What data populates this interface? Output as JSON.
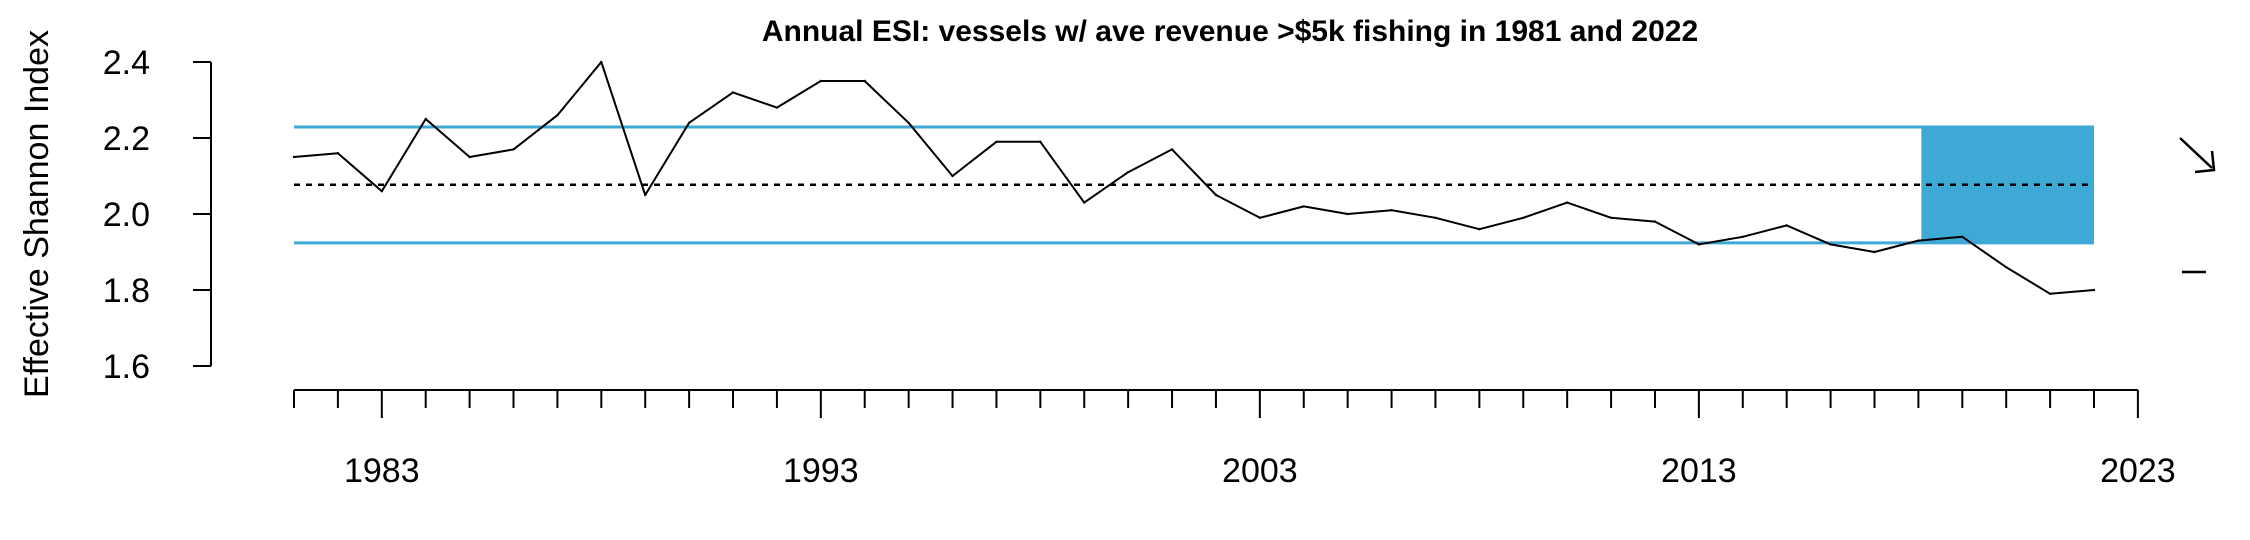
{
  "chart_data": {
    "type": "line",
    "title": "Annual ESI: vessels w/ ave revenue >$5k fishing in 1981 and 2022",
    "xlabel": "",
    "ylabel": "Effective Shannon Index",
    "x": [
      1981,
      1982,
      1983,
      1984,
      1985,
      1986,
      1987,
      1988,
      1989,
      1990,
      1991,
      1992,
      1993,
      1994,
      1995,
      1996,
      1997,
      1998,
      1999,
      2000,
      2001,
      2002,
      2003,
      2004,
      2005,
      2006,
      2007,
      2008,
      2009,
      2010,
      2011,
      2012,
      2013,
      2014,
      2015,
      2016,
      2017,
      2018,
      2019,
      2020,
      2021,
      2022
    ],
    "y": [
      2.15,
      2.16,
      2.06,
      2.25,
      2.15,
      2.17,
      2.26,
      2.4,
      2.05,
      2.24,
      2.32,
      2.28,
      2.35,
      2.35,
      2.24,
      2.1,
      2.19,
      2.19,
      2.03,
      2.11,
      2.17,
      2.05,
      1.99,
      2.02,
      2.0,
      2.01,
      1.99,
      1.96,
      1.99,
      2.03,
      1.99,
      1.98,
      1.92,
      1.94,
      1.97,
      1.92,
      1.9,
      1.93,
      1.94,
      1.86,
      1.79,
      1.8
    ],
    "xlim": [
      1981,
      2023
    ],
    "ylim": [
      1.6,
      2.4
    ],
    "x_ticks": [
      1983,
      1993,
      2003,
      2013,
      2023
    ],
    "x_tick_labels": [
      "1983",
      "1993",
      "2003",
      "2013",
      "2023"
    ],
    "y_ticks": [
      1.6,
      1.8,
      2.0,
      2.2,
      2.4
    ],
    "y_tick_labels": [
      "1.6",
      "1.8",
      "2.0",
      "2.2",
      "2.4"
    ],
    "mean": 2.077,
    "upper_sd": 2.229,
    "lower_sd": 1.924,
    "highlight_range": [
      2018,
      2022
    ],
    "trend_indicator": "decreasing",
    "mean_indicator": "within one SD",
    "colors": {
      "band": "#3fa9d6",
      "line": "#000000",
      "shade": "#3fa9d6"
    }
  }
}
